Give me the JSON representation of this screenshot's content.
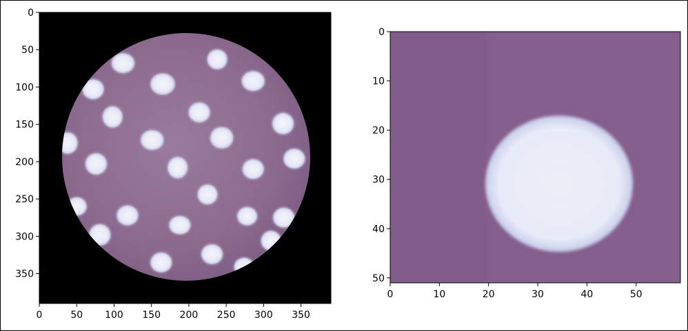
{
  "figure": {
    "panels": [
      {
        "name": "full-image",
        "x_ticks": [
          "0",
          "50",
          "100",
          "150",
          "200",
          "250",
          "300",
          "350"
        ],
        "y_ticks": [
          "0",
          "50",
          "100",
          "150",
          "200",
          "250",
          "300",
          "350"
        ],
        "xlim": [
          0,
          390
        ],
        "ylim": [
          390,
          0
        ],
        "content": "circular microscope view of purple culture with white colonies on black background"
      },
      {
        "name": "crop-image",
        "x_ticks": [
          "0",
          "10",
          "20",
          "30",
          "40",
          "50"
        ],
        "y_ticks": [
          "0",
          "10",
          "20",
          "30",
          "40",
          "50"
        ],
        "xlim": [
          0,
          59
        ],
        "ylim": [
          51,
          0
        ],
        "content": "zoomed crop of a single white colony on purple background"
      }
    ]
  },
  "colors": {
    "background": "#000000",
    "dish": "#8f6d92",
    "colony": "#eef0f8",
    "crop_bg": "#855f8c"
  }
}
